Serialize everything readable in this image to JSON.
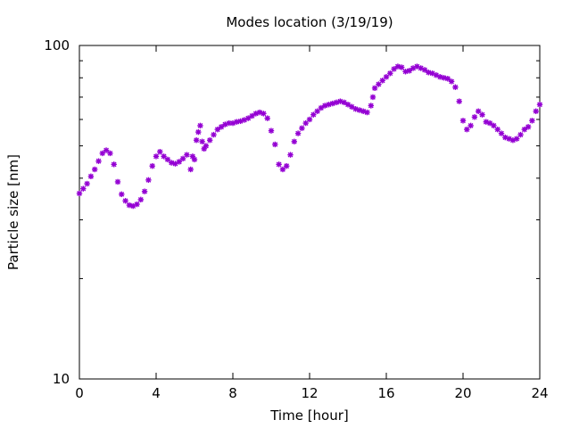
{
  "chart_data": {
    "type": "scatter",
    "title": "Modes location (3/19/19)",
    "xlabel": "Time [hour]",
    "ylabel": "Particle size [nm]",
    "xlim": [
      0,
      24
    ],
    "ylim": [
      10,
      100
    ],
    "yscale": "log",
    "grid": false,
    "legend": "none",
    "x_ticks": [
      0,
      4,
      8,
      12,
      16,
      20,
      24
    ],
    "x_tick_labels": [
      "0",
      "4",
      "8",
      "12",
      "16",
      "20",
      "24"
    ],
    "y_tick_labels": [
      "10",
      "100"
    ],
    "marker_color": "#9400d3",
    "series": [
      {
        "x": [
          0.0,
          0.2,
          0.4,
          0.6,
          0.8,
          1.0,
          1.2,
          1.4,
          1.6,
          1.8,
          2.0,
          2.2,
          2.4,
          2.6,
          2.8,
          3.0,
          3.2,
          3.4,
          3.6,
          3.8,
          4.0,
          4.2,
          4.4,
          4.6,
          4.8,
          5.0,
          5.2,
          5.4,
          5.6,
          5.8,
          5.9,
          6.0,
          6.1,
          6.2,
          6.3,
          6.4,
          6.5,
          6.6,
          6.8,
          7.0,
          7.2,
          7.4,
          7.6,
          7.8,
          8.0,
          8.2,
          8.4,
          8.6,
          8.8,
          9.0,
          9.2,
          9.4,
          9.6,
          9.8,
          10.0,
          10.2,
          10.4,
          10.6,
          10.8,
          11.0,
          11.2,
          11.4,
          11.6,
          11.8,
          12.0,
          12.2,
          12.4,
          12.6,
          12.8,
          13.0,
          13.2,
          13.4,
          13.6,
          13.8,
          14.0,
          14.2,
          14.4,
          14.6,
          14.8,
          15.0,
          15.2,
          15.3,
          15.4,
          15.6,
          15.8,
          16.0,
          16.2,
          16.4,
          16.6,
          16.8,
          17.0,
          17.2,
          17.4,
          17.6,
          17.8,
          18.0,
          18.2,
          18.4,
          18.6,
          18.8,
          19.0,
          19.2,
          19.4,
          19.6,
          19.8,
          20.0,
          20.2,
          20.4,
          20.6,
          20.8,
          21.0,
          21.2,
          21.4,
          21.6,
          21.8,
          22.0,
          22.2,
          22.4,
          22.6,
          22.8,
          23.0,
          23.2,
          23.4,
          23.6,
          23.8,
          24.0
        ],
        "y": [
          36.0,
          37.2,
          38.5,
          40.5,
          42.5,
          45.0,
          47.5,
          48.5,
          47.5,
          44.0,
          39.0,
          35.8,
          34.2,
          33.2,
          33.0,
          33.4,
          34.5,
          36.5,
          39.5,
          43.5,
          46.5,
          48.0,
          46.5,
          45.5,
          44.5,
          44.2,
          44.8,
          45.8,
          47.0,
          42.5,
          46.5,
          45.5,
          52.0,
          55.0,
          57.5,
          51.5,
          49.0,
          50.0,
          52.0,
          54.0,
          56.0,
          57.0,
          58.0,
          58.5,
          58.5,
          59.0,
          59.3,
          59.8,
          60.5,
          61.5,
          62.5,
          63.0,
          62.5,
          60.5,
          55.5,
          50.5,
          44.0,
          42.5,
          43.5,
          47.0,
          51.5,
          54.5,
          56.5,
          58.5,
          60.0,
          62.0,
          63.5,
          65.0,
          66.0,
          66.5,
          67.0,
          67.5,
          68.0,
          67.5,
          66.5,
          65.5,
          64.5,
          64.0,
          63.5,
          63.0,
          66.0,
          70.0,
          74.5,
          76.5,
          78.5,
          80.5,
          82.5,
          85.0,
          86.5,
          86.0,
          83.5,
          84.0,
          85.5,
          86.5,
          85.5,
          84.5,
          83.0,
          82.5,
          81.5,
          80.5,
          80.0,
          79.5,
          78.0,
          75.0,
          68.0,
          59.5,
          56.0,
          57.5,
          61.0,
          63.5,
          62.0,
          59.0,
          58.5,
          57.5,
          56.0,
          54.5,
          53.0,
          52.5,
          52.0,
          52.5,
          54.0,
          56.0,
          57.0,
          59.5,
          63.5,
          66.5
        ]
      }
    ]
  }
}
